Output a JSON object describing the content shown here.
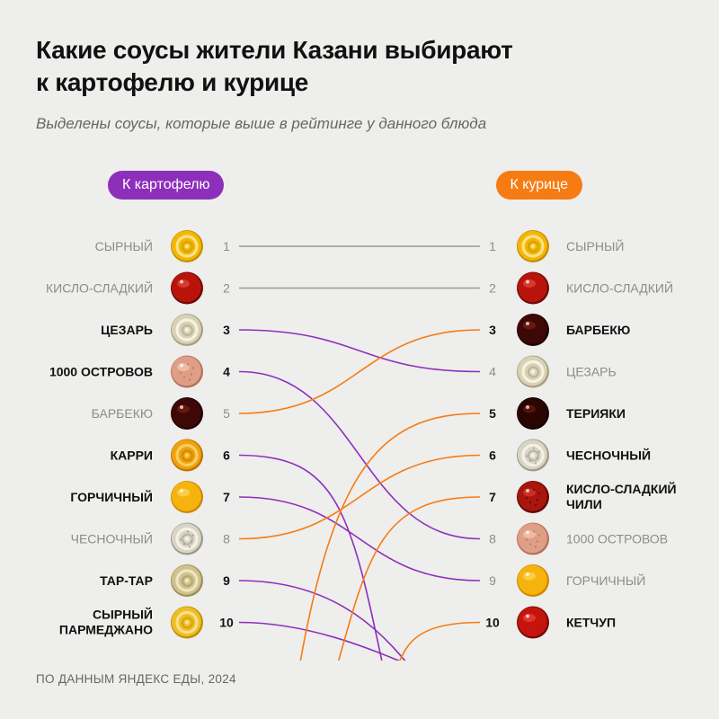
{
  "header": {
    "title_line1": "Какие соусы жители Казани выбирают",
    "title_line2": "к картофелю и курице",
    "subtitle": "Выделены соусы, которые выше в рейтинге у данного блюда"
  },
  "footer": {
    "source": "ПО ДАННЫМ ЯНДЕКС ЕДЫ, 2024"
  },
  "colors": {
    "left_accent": "#8e2fbc",
    "right_accent": "#f77b13",
    "neutral_line": "#9a9a9a",
    "highlight_text": "#111111",
    "muted_text": "#8c8c8c"
  },
  "chart_data": {
    "type": "slope-ranking",
    "left_column": {
      "label": "К картофелю",
      "items": [
        {
          "rank": 1,
          "name": "СЫРНЫЙ",
          "highlight": false,
          "sauce": "cheese"
        },
        {
          "rank": 2,
          "name": "КИСЛО-СЛАДКИЙ",
          "highlight": false,
          "sauce": "sweet-sour"
        },
        {
          "rank": 3,
          "name": "ЦЕЗАРЬ",
          "highlight": true,
          "sauce": "caesar"
        },
        {
          "rank": 4,
          "name": "1000 ОСТРОВОВ",
          "highlight": true,
          "sauce": "thousand-island"
        },
        {
          "rank": 5,
          "name": "БАРБЕКЮ",
          "highlight": false,
          "sauce": "bbq"
        },
        {
          "rank": 6,
          "name": "КАРРИ",
          "highlight": true,
          "sauce": "curry"
        },
        {
          "rank": 7,
          "name": "ГОРЧИЧНЫЙ",
          "highlight": true,
          "sauce": "mustard"
        },
        {
          "rank": 8,
          "name": "ЧЕСНОЧНЫЙ",
          "highlight": false,
          "sauce": "garlic"
        },
        {
          "rank": 9,
          "name": "ТАР-ТАР",
          "highlight": true,
          "sauce": "tartar"
        },
        {
          "rank": 10,
          "name": "СЫРНЫЙ\nПАРМЕДЖАНО",
          "highlight": true,
          "sauce": "parmesan"
        }
      ]
    },
    "right_column": {
      "label": "К курице",
      "items": [
        {
          "rank": 1,
          "name": "СЫРНЫЙ",
          "highlight": false,
          "sauce": "cheese"
        },
        {
          "rank": 2,
          "name": "КИСЛО-СЛАДКИЙ",
          "highlight": false,
          "sauce": "sweet-sour"
        },
        {
          "rank": 3,
          "name": "БАРБЕКЮ",
          "highlight": true,
          "sauce": "bbq"
        },
        {
          "rank": 4,
          "name": "ЦЕЗАРЬ",
          "highlight": false,
          "sauce": "caesar"
        },
        {
          "rank": 5,
          "name": "ТЕРИЯКИ",
          "highlight": true,
          "sauce": "teriyaki"
        },
        {
          "rank": 6,
          "name": "ЧЕСНОЧНЫЙ",
          "highlight": true,
          "sauce": "garlic"
        },
        {
          "rank": 7,
          "name": "КИСЛО-СЛАДКИЙ\nЧИЛИ",
          "highlight": true,
          "sauce": "sweet-chili"
        },
        {
          "rank": 8,
          "name": "1000 ОСТРОВОВ",
          "highlight": false,
          "sauce": "thousand-island"
        },
        {
          "rank": 9,
          "name": "ГОРЧИЧНЫЙ",
          "highlight": false,
          "sauce": "mustard"
        },
        {
          "rank": 10,
          "name": "КЕТЧУП",
          "highlight": true,
          "sauce": "ketchup"
        }
      ]
    },
    "connections": [
      {
        "left": 1,
        "right": 1,
        "color": "neutral"
      },
      {
        "left": 2,
        "right": 2,
        "color": "neutral"
      },
      {
        "left": 3,
        "right": 4,
        "color": "left"
      },
      {
        "left": 4,
        "right": 8,
        "color": "left"
      },
      {
        "left": 5,
        "right": 3,
        "color": "right"
      },
      {
        "left": 6,
        "right": null,
        "color": "left"
      },
      {
        "left": 7,
        "right": 9,
        "color": "left"
      },
      {
        "left": 8,
        "right": 6,
        "color": "right"
      },
      {
        "left": 9,
        "right": null,
        "color": "left"
      },
      {
        "left": 10,
        "right": null,
        "color": "left"
      },
      {
        "left": null,
        "right": 5,
        "color": "right"
      },
      {
        "left": null,
        "right": 7,
        "color": "right"
      },
      {
        "left": null,
        "right": 10,
        "color": "right"
      }
    ]
  }
}
